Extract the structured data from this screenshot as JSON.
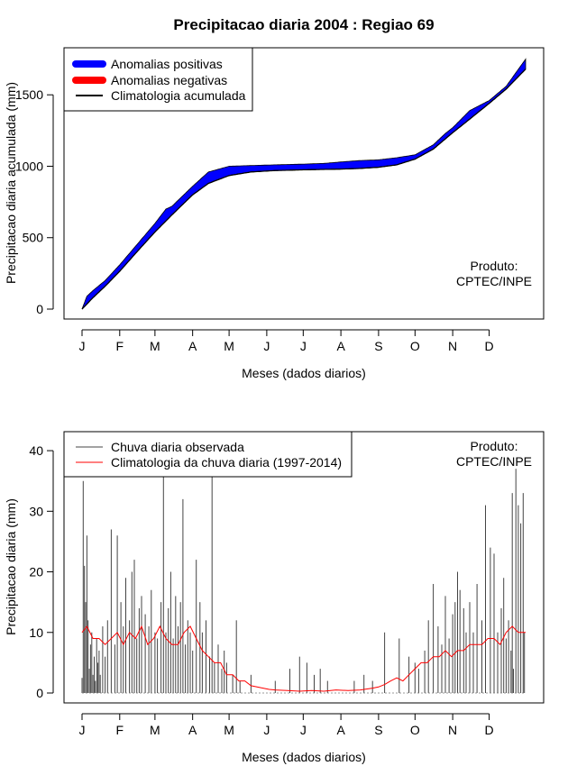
{
  "title": "Precipitacao diaria 2004 : Regiao 69",
  "chart_data": [
    {
      "type": "area",
      "xlabel": "Meses (dados diarios)",
      "ylabel": "Precipitacao diaria acumulada (mm)",
      "x_tick_labels": [
        "J",
        "F",
        "M",
        "A",
        "M",
        "J",
        "J",
        "A",
        "S",
        "O",
        "N",
        "D"
      ],
      "x_tick_days": [
        1,
        32,
        61,
        92,
        122,
        153,
        183,
        214,
        245,
        275,
        306,
        336
      ],
      "xlim": [
        1,
        366
      ],
      "yticks": [
        0,
        500,
        1000,
        1500
      ],
      "ylim": [
        0,
        1760
      ],
      "legend": {
        "placement": "top-left",
        "entries": [
          {
            "label": "Anomalias positivas",
            "color": "#0000ff"
          },
          {
            "label": "Anomalias negativas",
            "color": "#ff0000"
          },
          {
            "label": "Climatologia acumulada",
            "color": "#000000"
          }
        ]
      },
      "annotation": [
        "Produto:",
        "CPTEC/INPE"
      ],
      "climatology_cumulative": {
        "x": [
          1,
          10,
          20,
          32,
          45,
          61,
          75,
          92,
          105,
          122,
          140,
          160,
          183,
          200,
          214,
          230,
          245,
          260,
          275,
          290,
          306,
          320,
          336,
          350,
          366
        ],
        "y": [
          0,
          80,
          160,
          265,
          390,
          540,
          660,
          800,
          880,
          935,
          960,
          970,
          975,
          978,
          980,
          985,
          993,
          1010,
          1050,
          1120,
          1235,
          1330,
          1440,
          1540,
          1680
        ]
      },
      "observed_cumulative": {
        "x": [
          1,
          5,
          10,
          20,
          32,
          45,
          61,
          70,
          75,
          92,
          105,
          122,
          140,
          160,
          183,
          200,
          214,
          230,
          245,
          260,
          275,
          290,
          300,
          306,
          320,
          336,
          350,
          366
        ],
        "y": [
          0,
          90,
          130,
          200,
          310,
          440,
          600,
          700,
          720,
          860,
          960,
          1000,
          1005,
          1010,
          1015,
          1020,
          1030,
          1040,
          1045,
          1060,
          1080,
          1150,
          1230,
          1270,
          1390,
          1460,
          1560,
          1750
        ]
      }
    },
    {
      "type": "bar",
      "xlabel": "Meses (dados diarios)",
      "ylabel": "Precipitacao diaria (mm)",
      "x_tick_labels": [
        "J",
        "F",
        "M",
        "A",
        "M",
        "J",
        "J",
        "A",
        "S",
        "O",
        "N",
        "D"
      ],
      "x_tick_days": [
        1,
        32,
        61,
        92,
        122,
        153,
        183,
        214,
        245,
        275,
        306,
        336
      ],
      "xlim": [
        1,
        366
      ],
      "yticks": [
        0,
        10,
        20,
        30,
        40
      ],
      "ylim": [
        0,
        41.5
      ],
      "legend": {
        "placement": "top-left",
        "entries": [
          {
            "label": "Chuva diaria observada",
            "color": "#444444"
          },
          {
            "label": "Climatologia da chuva diaria (1997-2014)",
            "color": "#ff0000"
          }
        ]
      },
      "annotation": [
        "Produto:",
        "CPTEC/INPE"
      ],
      "observed_daily": {
        "day": [
          1,
          2,
          3,
          4,
          5,
          6,
          7,
          8,
          9,
          10,
          11,
          12,
          13,
          14,
          15,
          16,
          18,
          20,
          22,
          25,
          28,
          30,
          33,
          35,
          37,
          40,
          42,
          44,
          46,
          48,
          50,
          53,
          56,
          58,
          61,
          63,
          66,
          68,
          70,
          72,
          74,
          76,
          78,
          80,
          82,
          84,
          86,
          88,
          90,
          92,
          95,
          98,
          100,
          103,
          106,
          108,
          110,
          113,
          116,
          118,
          120,
          125,
          128,
          131,
          140,
          160,
          172,
          180,
          186,
          192,
          197,
          203,
          225,
          233,
          240,
          250,
          262,
          270,
          275,
          278,
          283,
          286,
          290,
          294,
          297,
          300,
          303,
          306,
          308,
          310,
          312,
          315,
          317,
          320,
          323,
          326,
          330,
          333,
          337,
          340,
          343,
          346,
          348,
          350,
          352,
          354,
          355,
          356,
          358,
          360,
          362,
          364,
          365
        ],
        "value": [
          2.5,
          35,
          21,
          15,
          26,
          12,
          4,
          8,
          10,
          3,
          6,
          2,
          9,
          5,
          7,
          3,
          11,
          6,
          12,
          27,
          8,
          26,
          15,
          11,
          19,
          12,
          20,
          22,
          9,
          14,
          16,
          13,
          11,
          17,
          10,
          9,
          15,
          36,
          10,
          14,
          20,
          9,
          16,
          11,
          15,
          32,
          8,
          12,
          10,
          7,
          22,
          15,
          10,
          12,
          6,
          37,
          5,
          8,
          4,
          7,
          5,
          3,
          12,
          2,
          3,
          2,
          4,
          6,
          5,
          3,
          4,
          2,
          2,
          3,
          2,
          10,
          9,
          6,
          5,
          4,
          7,
          12,
          18,
          11,
          8,
          16,
          9,
          13,
          15,
          20,
          17,
          14,
          10,
          15,
          10,
          18,
          12,
          31,
          24,
          23,
          10,
          14,
          19,
          9,
          12,
          7,
          33,
          4,
          37,
          31,
          28,
          33,
          10
        ]
      },
      "climatology_daily": {
        "day": [
          1,
          5,
          10,
          15,
          20,
          25,
          30,
          35,
          40,
          45,
          50,
          55,
          60,
          65,
          70,
          75,
          80,
          85,
          90,
          95,
          100,
          105,
          110,
          115,
          120,
          125,
          130,
          135,
          140,
          145,
          150,
          155,
          160,
          170,
          180,
          190,
          200,
          210,
          220,
          230,
          240,
          245,
          250,
          255,
          260,
          265,
          270,
          275,
          280,
          285,
          290,
          295,
          300,
          305,
          310,
          315,
          320,
          325,
          330,
          335,
          340,
          345,
          350,
          355,
          360,
          366
        ],
        "value": [
          10,
          11,
          9,
          9,
          8,
          9,
          10,
          8,
          10,
          9,
          11,
          8,
          9,
          11,
          9,
          8,
          8,
          10,
          11,
          9,
          7,
          6,
          5,
          5,
          3,
          3,
          2,
          2,
          1.2,
          1,
          0.8,
          0.6,
          0.5,
          0.4,
          0.3,
          0.4,
          0.3,
          0.5,
          0.4,
          0.5,
          0.8,
          1,
          1.4,
          2,
          2.5,
          2,
          3,
          4,
          5,
          5,
          6,
          6,
          7,
          6,
          7,
          7,
          8,
          8,
          8,
          9,
          9,
          8,
          10,
          11,
          10,
          10
        ]
      }
    }
  ]
}
